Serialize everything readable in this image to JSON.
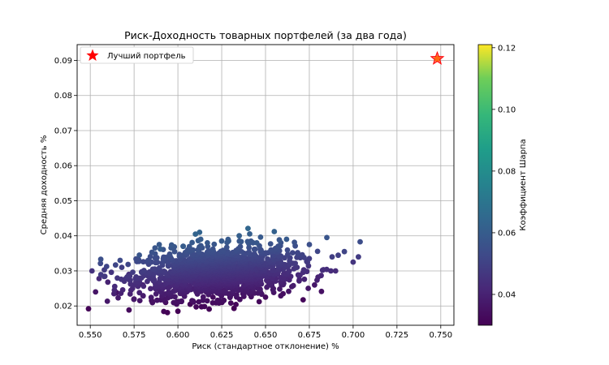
{
  "chart_data": {
    "type": "scatter",
    "title": "Риск-Доходность товарных портфелей (за два года)",
    "xlabel": "Риск (стандартное отклонение) %",
    "ylabel": "Средняя доходность %",
    "xlim": [
      0.5425,
      0.7575
    ],
    "ylim": [
      0.0145,
      0.0945
    ],
    "xticks": [
      "0.550",
      "0.575",
      "0.600",
      "0.625",
      "0.650",
      "0.675",
      "0.700",
      "0.725",
      "0.750"
    ],
    "yticks": [
      "0.02",
      "0.03",
      "0.04",
      "0.05",
      "0.06",
      "0.07",
      "0.08",
      "0.09"
    ],
    "grid": true,
    "legend_position": "top-left",
    "legend_label": "Лучший портфель",
    "colorbar": {
      "label": "Коэффициент Шарпа",
      "colormap": "viridis",
      "range": [
        0.03,
        0.121
      ],
      "ticks": [
        "0.04",
        "0.06",
        "0.08",
        "0.10",
        "0.12"
      ]
    },
    "best_portfolio": {
      "x": 0.748,
      "y": 0.0905,
      "color": "#ff0000"
    },
    "n_points": 1500,
    "point_cloud": {
      "x_range": [
        0.549,
        0.705
      ],
      "y_range": [
        0.018,
        0.042
      ],
      "x_center": 0.622,
      "y_center": 0.0295
    },
    "series": [
      {
        "x": [
          0.549,
          0.551,
          0.553,
          0.555,
          0.556,
          0.558,
          0.56,
          0.562,
          0.565,
          0.567,
          0.568,
          0.572,
          0.575,
          0.578,
          0.58,
          0.583,
          0.585,
          0.588,
          0.59,
          0.593,
          0.597,
          0.6,
          0.603,
          0.607,
          0.61,
          0.612,
          0.615,
          0.62,
          0.625,
          0.628,
          0.632,
          0.635,
          0.64,
          0.642,
          0.645,
          0.648,
          0.65,
          0.655,
          0.66,
          0.662,
          0.665,
          0.668,
          0.672,
          0.675,
          0.678,
          0.68,
          0.685,
          0.688,
          0.69,
          0.695,
          0.7,
          0.703,
          0.704
        ],
        "y": [
          0.0192,
          0.03,
          0.024,
          0.0278,
          0.0333,
          0.0303,
          0.0268,
          0.0296,
          0.0238,
          0.033,
          0.031,
          0.029,
          0.022,
          0.0345,
          0.026,
          0.033,
          0.0215,
          0.03,
          0.0362,
          0.021,
          0.033,
          0.0185,
          0.037,
          0.0205,
          0.0405,
          0.027,
          0.033,
          0.0225,
          0.0385,
          0.035,
          0.0193,
          0.04,
          0.0421,
          0.026,
          0.038,
          0.0305,
          0.0225,
          0.0412,
          0.0235,
          0.039,
          0.0255,
          0.031,
          0.0338,
          0.0375,
          0.026,
          0.0282,
          0.0395,
          0.034,
          0.03,
          0.0355,
          0.0325,
          0.034,
          0.0383
        ],
        "sharpe": [
          0.031,
          0.045,
          0.036,
          0.042,
          0.055,
          0.048,
          0.04,
          0.046,
          0.035,
          0.053,
          0.049,
          0.044,
          0.033,
          0.057,
          0.039,
          0.053,
          0.032,
          0.046,
          0.06,
          0.031,
          0.052,
          0.03,
          0.06,
          0.031,
          0.063,
          0.04,
          0.051,
          0.033,
          0.059,
          0.054,
          0.03,
          0.061,
          0.064,
          0.038,
          0.058,
          0.045,
          0.033,
          0.062,
          0.034,
          0.059,
          0.037,
          0.046,
          0.05,
          0.055,
          0.037,
          0.04,
          0.057,
          0.049,
          0.043,
          0.051,
          0.046,
          0.048,
          0.054
        ]
      }
    ]
  }
}
